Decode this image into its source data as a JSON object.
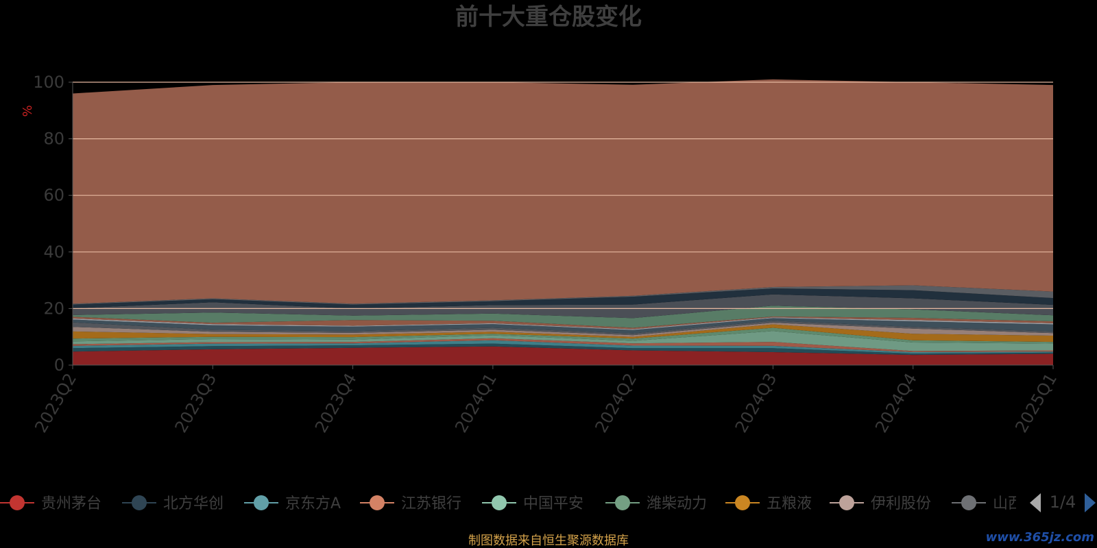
{
  "chart_data": {
    "type": "area",
    "title": "前十大重仓股变化",
    "ylabel": "%",
    "xlabel": "",
    "ylim": [
      0,
      100
    ],
    "yticks": [
      0,
      20,
      40,
      60,
      80,
      100
    ],
    "grid": true,
    "legend_placement": "bottom",
    "categories": [
      "2023Q2",
      "2023Q3",
      "2023Q4",
      "2024Q1",
      "2024Q2",
      "2024Q3",
      "2024Q4",
      "2025Q1"
    ],
    "series": [
      {
        "name": "贵州茅台",
        "color": "#c23531",
        "values": [
          4.8,
          5.6,
          6.1,
          6.6,
          5.2,
          4.6,
          3.6,
          4.0
        ]
      },
      {
        "name": "北方华创",
        "color": "#2f4554",
        "values": [
          1.2,
          1.1,
          0.9,
          1.0,
          0.8,
          1.4,
          0.5,
          0.4
        ]
      },
      {
        "name": "京东方A",
        "color": "#61a0a8",
        "values": [
          0.8,
          0.9,
          0.7,
          1.2,
          0.9,
          0.8,
          0.5,
          0.4
        ]
      },
      {
        "name": "江苏银行",
        "color": "#d48265",
        "values": [
          0.6,
          0.5,
          0.5,
          0.7,
          0.8,
          1.4,
          0.4,
          0.4
        ]
      },
      {
        "name": "中国平安",
        "color": "#91c7ae",
        "values": [
          1.0,
          1.1,
          0.8,
          1.0,
          0.9,
          3.8,
          3.0,
          2.4
        ]
      },
      {
        "name": "潍柴动力",
        "color": "#749f83",
        "values": [
          1.0,
          0.8,
          0.9,
          0.6,
          0.8,
          1.2,
          0.8,
          0.6
        ]
      },
      {
        "name": "五粮液",
        "color": "#ca8622",
        "values": [
          2.5,
          1.0,
          0.9,
          0.7,
          0.6,
          1.2,
          2.3,
          2.2
        ]
      },
      {
        "name": "伊利股份",
        "color": "#bda29a",
        "values": [
          1.6,
          0.8,
          0.6,
          0.7,
          0.6,
          0.6,
          1.8,
          0.9
        ]
      },
      {
        "name": "山西汾酒",
        "color": "#6e7074",
        "values": [
          1.6,
          0.7,
          0.6,
          0.7,
          0.6,
          0.7,
          0.6,
          0.6
        ]
      },
      {
        "name": "",
        "color": "#546570",
        "values": [
          1.0,
          1.6,
          1.6,
          1.3,
          1.2,
          0.9,
          2.0,
          2.5
        ]
      },
      {
        "name": "",
        "color": "#c4ccd3",
        "values": [
          0.4,
          0.4,
          0.3,
          0.3,
          0.3,
          0.3,
          0.4,
          0.4
        ]
      },
      {
        "name": "",
        "color": "#d48265",
        "values": [
          0.6,
          0.5,
          2.0,
          0.9,
          0.5,
          0.3,
          0.8,
          0.7
        ]
      },
      {
        "name": "",
        "color": "#749f83",
        "values": [
          0.6,
          3.6,
          1.6,
          2.5,
          3.4,
          3.8,
          3.0,
          2.1
        ]
      },
      {
        "name": "",
        "color": "#6e7074",
        "values": [
          2.4,
          3.6,
          2.5,
          3.0,
          4.8,
          4.0,
          3.9,
          3.7
        ]
      },
      {
        "name": "",
        "color": "#2f4554",
        "values": [
          1.3,
          1.1,
          1.4,
          1.4,
          2.8,
          2.1,
          2.9,
          2.4
        ]
      },
      {
        "name": "",
        "color": "#7f7f7f",
        "values": [
          0.3,
          0.3,
          0.3,
          0.3,
          0.3,
          0.5,
          1.7,
          2.3
        ]
      },
      {
        "name": "",
        "color": "#ffffff",
        "values": [
          74.3,
          75.4,
          78.3,
          77.1,
          74.6,
          73.4,
          71.8,
          73.0
        ]
      }
    ],
    "fill_colors": [
      "#8b2223",
      "#244c57",
      "#3f7f88",
      "#a05a48",
      "#6f9a84",
      "#5f8a6e",
      "#a46b1a",
      "#978078",
      "#53565c",
      "#3e4f5a",
      "#9a9fa5",
      "#8f5845",
      "#587c66",
      "#4b4f56",
      "#21303d",
      "#5a5d62",
      "#945c4a"
    ]
  },
  "legend": {
    "items": [
      {
        "name": "贵州茅台",
        "color": "#c23531"
      },
      {
        "name": "北方华创",
        "color": "#2f4554"
      },
      {
        "name": "京东方A",
        "color": "#61a0a8"
      },
      {
        "name": "江苏银行",
        "color": "#d48265"
      },
      {
        "name": "中国平安",
        "color": "#91c7ae"
      },
      {
        "name": "潍柴动力",
        "color": "#749f83"
      },
      {
        "name": "五粮液",
        "color": "#ca8622"
      },
      {
        "name": "伊利股份",
        "color": "#bda29a"
      },
      {
        "name": "山西汾酒",
        "color": "#6e7074"
      }
    ],
    "page": "1/4"
  },
  "footer": {
    "source": "制图数据来自恒生聚源数据库",
    "watermark": "www.365jz.com"
  }
}
